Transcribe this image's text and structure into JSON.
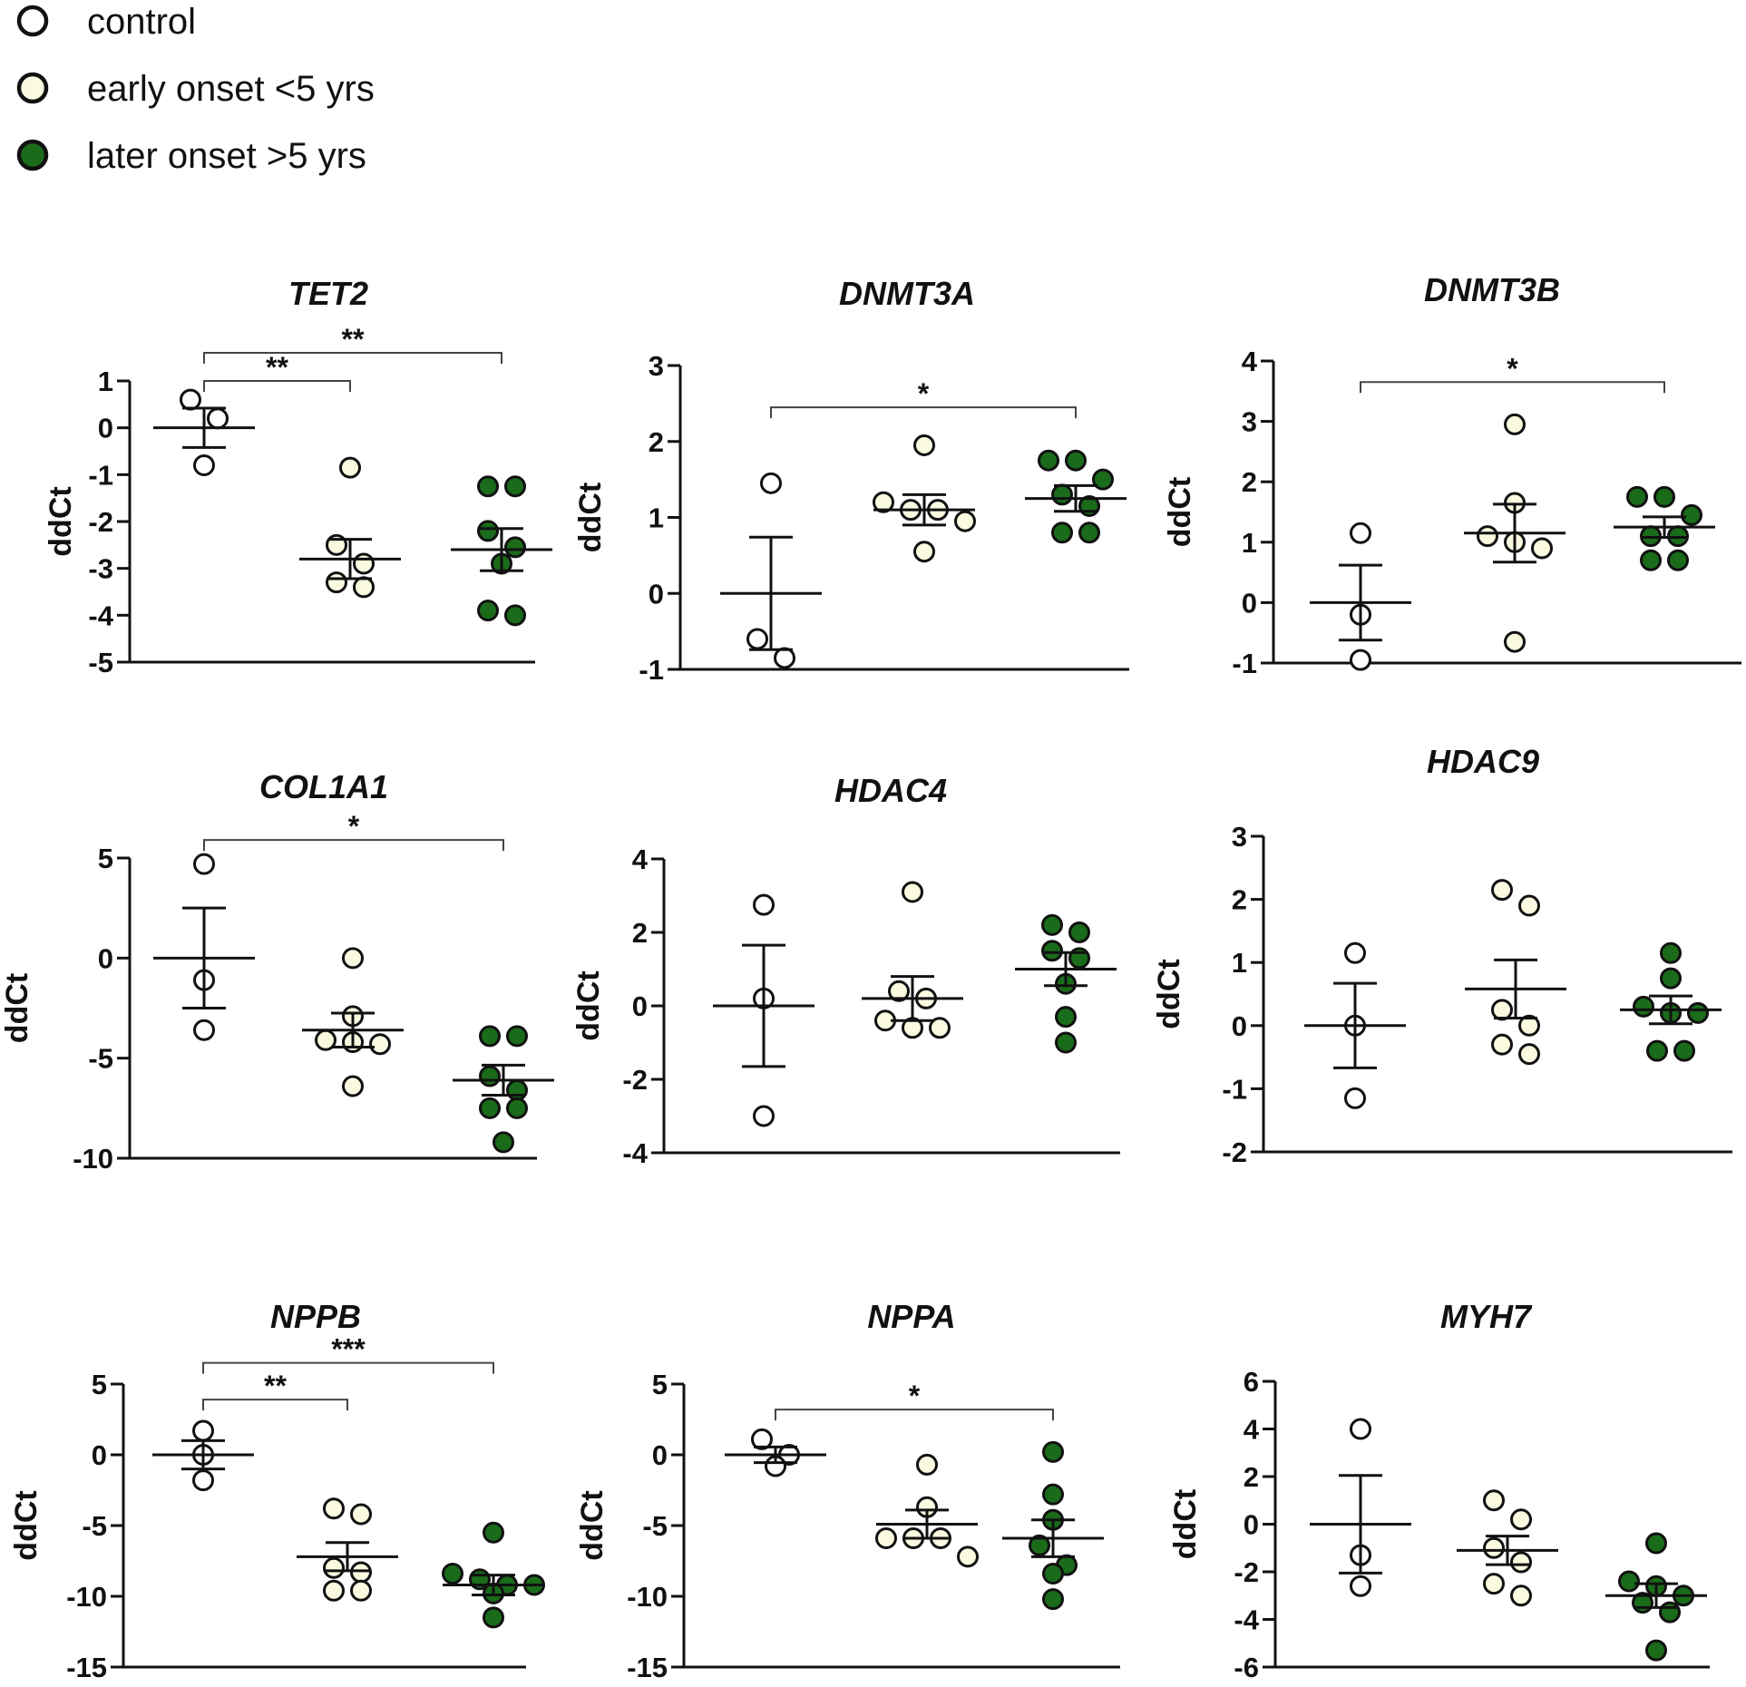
{
  "legend": {
    "items": [
      {
        "label": "control",
        "fill": "#ffffff"
      },
      {
        "label": "early onset <5 yrs",
        "fill": "#fafae0"
      },
      {
        "label": "later onset >5 yrs",
        "fill": "#1a6b1a"
      }
    ]
  },
  "colors": {
    "control": "#ffffff",
    "early": "#fafae0",
    "later": "#1a6b1a",
    "stroke": "#111111"
  },
  "chart_data": [
    {
      "type": "scatter",
      "title": "TET2",
      "ylabel": "ddCt",
      "ylim": [
        -5,
        1
      ],
      "yticks": [
        1,
        0,
        -1,
        -2,
        -3,
        -4,
        -5
      ],
      "groups": [
        {
          "name": "control",
          "values": [
            0.6,
            0.2,
            -0.8
          ],
          "mean": 0.0,
          "sem": 0.42
        },
        {
          "name": "early onset <5 yrs",
          "values": [
            -0.85,
            -2.5,
            -2.9,
            -3.3,
            -3.4
          ],
          "mean": -2.8,
          "sem": 0.42
        },
        {
          "name": "later onset >5 yrs",
          "values": [
            -1.25,
            -1.25,
            -2.2,
            -2.55,
            -2.9,
            -3.9,
            -4.0
          ],
          "mean": -2.6,
          "sem": 0.45
        }
      ],
      "significance": [
        {
          "from": 0,
          "to": 1,
          "label": "**",
          "y": 1.0
        },
        {
          "from": 0,
          "to": 2,
          "label": "**",
          "y": 1.6
        }
      ]
    },
    {
      "type": "scatter",
      "title": "DNMT3A",
      "ylabel": "ddCt",
      "ylim": [
        -1,
        3
      ],
      "yticks": [
        3,
        2,
        1,
        0,
        -1
      ],
      "groups": [
        {
          "name": "control",
          "values": [
            1.45,
            -0.6,
            -0.85
          ],
          "mean": 0.0,
          "sem": 0.74
        },
        {
          "name": "early onset <5 yrs",
          "values": [
            1.95,
            1.2,
            1.1,
            1.1,
            0.95,
            0.55
          ],
          "mean": 1.1,
          "sem": 0.2
        },
        {
          "name": "later onset >5 yrs",
          "values": [
            1.75,
            1.75,
            1.5,
            1.3,
            1.15,
            0.8,
            0.8
          ],
          "mean": 1.25,
          "sem": 0.17
        }
      ],
      "significance": [
        {
          "from": 0,
          "to": 2,
          "label": "*",
          "y": 2.45
        }
      ]
    },
    {
      "type": "scatter",
      "title": "DNMT3B",
      "ylabel": "ddCt",
      "ylim": [
        -1,
        4
      ],
      "yticks": [
        4,
        3,
        2,
        1,
        0,
        -1
      ],
      "groups": [
        {
          "name": "control",
          "values": [
            1.15,
            -0.2,
            -0.95
          ],
          "mean": 0.0,
          "sem": 0.62
        },
        {
          "name": "early onset <5 yrs",
          "values": [
            2.95,
            1.65,
            1.1,
            1.0,
            0.9,
            -0.65
          ],
          "mean": 1.15,
          "sem": 0.48
        },
        {
          "name": "later onset >5 yrs",
          "values": [
            1.75,
            1.75,
            1.45,
            1.1,
            1.1,
            0.7,
            0.7
          ],
          "mean": 1.25,
          "sem": 0.17
        }
      ],
      "significance": [
        {
          "from": 0,
          "to": 2,
          "label": "*",
          "y": 3.65
        }
      ]
    },
    {
      "type": "scatter",
      "title": "COL1A1",
      "ylabel": "ddCt",
      "ylim": [
        -10,
        5
      ],
      "yticks": [
        5,
        0,
        -5,
        -10
      ],
      "groups": [
        {
          "name": "control",
          "values": [
            4.7,
            -1.1,
            -3.6
          ],
          "mean": 0.0,
          "sem": 2.5
        },
        {
          "name": "early onset <5 yrs",
          "values": [
            0.0,
            -2.9,
            -4.1,
            -4.2,
            -4.3,
            -6.4
          ],
          "mean": -3.6,
          "sem": 0.85
        },
        {
          "name": "later onset >5 yrs",
          "values": [
            -3.9,
            -3.9,
            -5.9,
            -6.6,
            -7.5,
            -7.5,
            -9.2
          ],
          "mean": -6.1,
          "sem": 0.75
        }
      ],
      "significance": [
        {
          "from": 0,
          "to": 2,
          "label": "*",
          "y": 5.9
        }
      ]
    },
    {
      "type": "scatter",
      "title": "HDAC4",
      "ylabel": "ddCt",
      "ylim": [
        -4,
        4
      ],
      "yticks": [
        4,
        2,
        0,
        -2,
        -4
      ],
      "groups": [
        {
          "name": "control",
          "values": [
            2.75,
            0.2,
            -3.0
          ],
          "mean": 0.0,
          "sem": 1.65
        },
        {
          "name": "early onset <5 yrs",
          "values": [
            3.1,
            0.4,
            0.2,
            -0.4,
            -0.6,
            -0.6
          ],
          "mean": 0.2,
          "sem": 0.6
        },
        {
          "name": "later onset >5 yrs",
          "values": [
            2.2,
            2.0,
            1.5,
            1.3,
            0.6,
            -0.3,
            -1.0
          ],
          "mean": 1.0,
          "sem": 0.45
        }
      ],
      "significance": []
    },
    {
      "type": "scatter",
      "title": "HDAC9",
      "ylabel": "ddCt",
      "ylim": [
        -2,
        3
      ],
      "yticks": [
        3,
        2,
        1,
        0,
        -1,
        -2
      ],
      "groups": [
        {
          "name": "control",
          "values": [
            1.15,
            0.0,
            -1.15
          ],
          "mean": 0.0,
          "sem": 0.67
        },
        {
          "name": "early onset <5 yrs",
          "values": [
            2.15,
            1.9,
            0.25,
            0.0,
            -0.3,
            -0.45
          ],
          "mean": 0.58,
          "sem": 0.46
        },
        {
          "name": "later onset >5 yrs",
          "values": [
            1.15,
            0.75,
            0.3,
            0.2,
            0.2,
            -0.4,
            -0.4
          ],
          "mean": 0.25,
          "sem": 0.22
        }
      ],
      "significance": []
    },
    {
      "type": "scatter",
      "title": "NPPB",
      "ylabel": "ddCt",
      "ylim": [
        -15,
        5
      ],
      "yticks": [
        5,
        0,
        -5,
        -10,
        -15
      ],
      "groups": [
        {
          "name": "control",
          "values": [
            1.7,
            0.0,
            -1.8
          ],
          "mean": 0.0,
          "sem": 1.0
        },
        {
          "name": "early onset <5 yrs",
          "values": [
            -3.8,
            -4.2,
            -8.0,
            -8.3,
            -9.6,
            -9.6
          ],
          "mean": -7.2,
          "sem": 1.0
        },
        {
          "name": "later onset >5 yrs",
          "values": [
            -5.5,
            -8.4,
            -8.8,
            -9.2,
            -9.2,
            -9.8,
            -11.5
          ],
          "mean": -9.2,
          "sem": 0.7
        }
      ],
      "significance": [
        {
          "from": 0,
          "to": 1,
          "label": "**",
          "y": 3.9
        },
        {
          "from": 0,
          "to": 2,
          "label": "***",
          "y": 6.5
        }
      ]
    },
    {
      "type": "scatter",
      "title": "NPPA",
      "ylabel": "ddCt",
      "ylim": [
        -15,
        5
      ],
      "yticks": [
        5,
        0,
        -5,
        -10,
        -15
      ],
      "groups": [
        {
          "name": "control",
          "values": [
            1.1,
            0.0,
            -0.8
          ],
          "mean": 0.0,
          "sem": 0.55
        },
        {
          "name": "early onset <5 yrs",
          "values": [
            -0.7,
            -3.7,
            -5.9,
            -5.9,
            -5.9,
            -7.2
          ],
          "mean": -4.9,
          "sem": 1.0
        },
        {
          "name": "later onset >5 yrs",
          "values": [
            0.2,
            -2.8,
            -4.6,
            -6.4,
            -7.8,
            -8.4,
            -10.2
          ],
          "mean": -5.9,
          "sem": 1.3
        }
      ],
      "significance": [
        {
          "from": 0,
          "to": 2,
          "label": "*",
          "y": 3.2
        }
      ]
    },
    {
      "type": "scatter",
      "title": "MYH7",
      "ylabel": "ddCt",
      "ylim": [
        -6,
        6
      ],
      "yticks": [
        6,
        4,
        2,
        0,
        -2,
        -4,
        -6
      ],
      "groups": [
        {
          "name": "control",
          "values": [
            4.0,
            -1.3,
            -2.6
          ],
          "mean": 0.0,
          "sem": 2.05
        },
        {
          "name": "early onset <5 yrs",
          "values": [
            1.0,
            0.2,
            -1.0,
            -1.6,
            -2.5,
            -3.0
          ],
          "mean": -1.1,
          "sem": 0.6
        },
        {
          "name": "later onset >5 yrs",
          "values": [
            -0.8,
            -2.4,
            -2.6,
            -3.0,
            -3.3,
            -3.7,
            -5.3
          ],
          "mean": -3.0,
          "sem": 0.5
        }
      ],
      "significance": []
    }
  ]
}
